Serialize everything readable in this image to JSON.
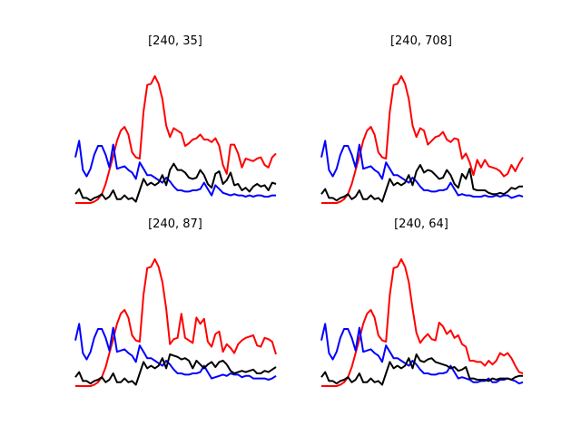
{
  "chart_data": [
    {
      "type": "line",
      "title": "[240, 35]",
      "xlabel": "",
      "ylabel": "",
      "axes_visible": false,
      "grid": false,
      "ylim": [
        0,
        1
      ],
      "series": [
        {
          "color": "#ff0000",
          "values": [
            0.0,
            0.0,
            0.0,
            0.0,
            0.0,
            0.01,
            0.03,
            0.07,
            0.15,
            0.26,
            0.37,
            0.49,
            0.57,
            0.6,
            0.54,
            0.4,
            0.36,
            0.35,
            0.72,
            0.93,
            0.94,
            1.0,
            0.94,
            0.82,
            0.61,
            0.52,
            0.59,
            0.57,
            0.55,
            0.45,
            0.47,
            0.5,
            0.51,
            0.54,
            0.5,
            0.5,
            0.48,
            0.51,
            0.45,
            0.3,
            0.23,
            0.46,
            0.46,
            0.39,
            0.28,
            0.35,
            0.34,
            0.33,
            0.35,
            0.36,
            0.3,
            0.28,
            0.36,
            0.39
          ]
        },
        {
          "color": "#0000ff",
          "values": [
            0.36,
            0.49,
            0.26,
            0.21,
            0.27,
            0.38,
            0.45,
            0.45,
            0.38,
            0.28,
            0.46,
            0.27,
            0.28,
            0.29,
            0.26,
            0.24,
            0.19,
            0.32,
            0.27,
            0.22,
            0.22,
            0.2,
            0.18,
            0.16,
            0.2,
            0.17,
            0.13,
            0.1,
            0.1,
            0.09,
            0.09,
            0.1,
            0.1,
            0.11,
            0.16,
            0.11,
            0.06,
            0.14,
            0.11,
            0.08,
            0.07,
            0.06,
            0.07,
            0.06,
            0.06,
            0.05,
            0.06,
            0.05,
            0.06,
            0.06,
            0.05,
            0.05,
            0.06,
            0.06
          ]
        },
        {
          "color": "#000000",
          "values": [
            0.07,
            0.11,
            0.04,
            0.04,
            0.02,
            0.04,
            0.05,
            0.07,
            0.03,
            0.05,
            0.1,
            0.03,
            0.03,
            0.06,
            0.03,
            0.04,
            0.01,
            0.1,
            0.19,
            0.14,
            0.16,
            0.14,
            0.16,
            0.22,
            0.14,
            0.26,
            0.31,
            0.26,
            0.26,
            0.24,
            0.2,
            0.19,
            0.2,
            0.26,
            0.22,
            0.15,
            0.12,
            0.23,
            0.25,
            0.15,
            0.18,
            0.24,
            0.14,
            0.15,
            0.1,
            0.12,
            0.09,
            0.13,
            0.15,
            0.13,
            0.14,
            0.1,
            0.16,
            0.15
          ]
        }
      ]
    },
    {
      "type": "line",
      "title": "[240, 708]",
      "xlabel": "",
      "ylabel": "",
      "axes_visible": false,
      "grid": false,
      "ylim": [
        0,
        1
      ],
      "series": [
        {
          "color": "#ff0000",
          "values": [
            0.0,
            0.0,
            0.0,
            0.0,
            0.0,
            0.01,
            0.03,
            0.07,
            0.15,
            0.26,
            0.37,
            0.49,
            0.57,
            0.6,
            0.54,
            0.4,
            0.36,
            0.35,
            0.72,
            0.93,
            0.94,
            1.0,
            0.94,
            0.82,
            0.61,
            0.52,
            0.59,
            0.57,
            0.46,
            0.49,
            0.52,
            0.53,
            0.56,
            0.5,
            0.48,
            0.51,
            0.5,
            0.35,
            0.39,
            0.32,
            0.22,
            0.34,
            0.28,
            0.34,
            0.29,
            0.28,
            0.27,
            0.25,
            0.21,
            0.23,
            0.3,
            0.25,
            0.31,
            0.36
          ]
        },
        {
          "color": "#0000ff",
          "values": [
            0.36,
            0.49,
            0.26,
            0.21,
            0.27,
            0.38,
            0.45,
            0.45,
            0.38,
            0.28,
            0.46,
            0.27,
            0.28,
            0.29,
            0.26,
            0.24,
            0.19,
            0.32,
            0.27,
            0.22,
            0.22,
            0.2,
            0.18,
            0.16,
            0.2,
            0.17,
            0.13,
            0.1,
            0.1,
            0.09,
            0.09,
            0.1,
            0.1,
            0.11,
            0.16,
            0.11,
            0.06,
            0.07,
            0.06,
            0.06,
            0.05,
            0.05,
            0.05,
            0.06,
            0.05,
            0.05,
            0.06,
            0.05,
            0.06,
            0.06,
            0.04,
            0.05,
            0.06,
            0.05
          ]
        },
        {
          "color": "#000000",
          "values": [
            0.07,
            0.11,
            0.04,
            0.04,
            0.02,
            0.04,
            0.05,
            0.07,
            0.03,
            0.05,
            0.1,
            0.03,
            0.03,
            0.06,
            0.03,
            0.04,
            0.01,
            0.1,
            0.19,
            0.14,
            0.16,
            0.14,
            0.16,
            0.22,
            0.14,
            0.25,
            0.3,
            0.24,
            0.26,
            0.25,
            0.22,
            0.19,
            0.2,
            0.26,
            0.22,
            0.15,
            0.12,
            0.23,
            0.19,
            0.27,
            0.11,
            0.1,
            0.1,
            0.1,
            0.08,
            0.07,
            0.07,
            0.08,
            0.07,
            0.09,
            0.12,
            0.11,
            0.13,
            0.13
          ]
        }
      ]
    },
    {
      "type": "line",
      "title": "[240, 87]",
      "xlabel": "",
      "ylabel": "",
      "axes_visible": false,
      "grid": false,
      "ylim": [
        0,
        1
      ],
      "series": [
        {
          "color": "#ff0000",
          "values": [
            0.0,
            0.0,
            0.0,
            0.0,
            0.0,
            0.01,
            0.03,
            0.07,
            0.15,
            0.26,
            0.37,
            0.49,
            0.57,
            0.6,
            0.54,
            0.4,
            0.36,
            0.35,
            0.72,
            0.93,
            0.94,
            1.0,
            0.94,
            0.82,
            0.61,
            0.33,
            0.37,
            0.38,
            0.57,
            0.38,
            0.36,
            0.34,
            0.54,
            0.49,
            0.53,
            0.35,
            0.31,
            0.41,
            0.43,
            0.27,
            0.33,
            0.3,
            0.26,
            0.33,
            0.36,
            0.38,
            0.39,
            0.4,
            0.32,
            0.31,
            0.38,
            0.37,
            0.35,
            0.25
          ]
        },
        {
          "color": "#0000ff",
          "values": [
            0.36,
            0.49,
            0.26,
            0.21,
            0.27,
            0.38,
            0.45,
            0.45,
            0.38,
            0.28,
            0.46,
            0.27,
            0.28,
            0.29,
            0.26,
            0.24,
            0.19,
            0.32,
            0.27,
            0.22,
            0.22,
            0.2,
            0.18,
            0.16,
            0.2,
            0.17,
            0.13,
            0.1,
            0.1,
            0.09,
            0.09,
            0.1,
            0.1,
            0.11,
            0.16,
            0.11,
            0.06,
            0.07,
            0.08,
            0.09,
            0.08,
            0.1,
            0.09,
            0.09,
            0.07,
            0.08,
            0.08,
            0.06,
            0.06,
            0.06,
            0.06,
            0.05,
            0.06,
            0.08
          ]
        },
        {
          "color": "#000000",
          "values": [
            0.07,
            0.11,
            0.04,
            0.04,
            0.02,
            0.04,
            0.05,
            0.07,
            0.03,
            0.05,
            0.1,
            0.03,
            0.03,
            0.06,
            0.03,
            0.04,
            0.01,
            0.1,
            0.19,
            0.14,
            0.16,
            0.14,
            0.16,
            0.22,
            0.14,
            0.25,
            0.24,
            0.23,
            0.21,
            0.22,
            0.2,
            0.14,
            0.2,
            0.17,
            0.14,
            0.17,
            0.19,
            0.15,
            0.19,
            0.2,
            0.17,
            0.12,
            0.1,
            0.11,
            0.12,
            0.11,
            0.12,
            0.13,
            0.1,
            0.1,
            0.12,
            0.11,
            0.13,
            0.15
          ]
        }
      ]
    },
    {
      "type": "line",
      "title": "[240, 64]",
      "xlabel": "",
      "ylabel": "",
      "axes_visible": false,
      "grid": false,
      "ylim": [
        0,
        1
      ],
      "series": [
        {
          "color": "#ff0000",
          "values": [
            0.0,
            0.0,
            0.0,
            0.0,
            0.0,
            0.01,
            0.03,
            0.07,
            0.15,
            0.26,
            0.37,
            0.49,
            0.57,
            0.6,
            0.54,
            0.4,
            0.36,
            0.35,
            0.72,
            0.93,
            0.94,
            1.0,
            0.94,
            0.82,
            0.61,
            0.42,
            0.34,
            0.38,
            0.41,
            0.37,
            0.36,
            0.5,
            0.47,
            0.41,
            0.44,
            0.38,
            0.4,
            0.33,
            0.31,
            0.2,
            0.2,
            0.19,
            0.19,
            0.16,
            0.2,
            0.17,
            0.2,
            0.26,
            0.24,
            0.26,
            0.22,
            0.16,
            0.11,
            0.1
          ]
        },
        {
          "color": "#0000ff",
          "values": [
            0.36,
            0.49,
            0.26,
            0.21,
            0.27,
            0.38,
            0.45,
            0.45,
            0.38,
            0.28,
            0.46,
            0.27,
            0.28,
            0.29,
            0.26,
            0.24,
            0.19,
            0.32,
            0.27,
            0.22,
            0.22,
            0.2,
            0.18,
            0.16,
            0.2,
            0.17,
            0.13,
            0.1,
            0.1,
            0.09,
            0.09,
            0.1,
            0.1,
            0.11,
            0.16,
            0.11,
            0.06,
            0.07,
            0.06,
            0.05,
            0.03,
            0.03,
            0.04,
            0.04,
            0.06,
            0.03,
            0.03,
            0.05,
            0.05,
            0.06,
            0.05,
            0.04,
            0.02,
            0.03
          ]
        },
        {
          "color": "#000000",
          "values": [
            0.07,
            0.11,
            0.04,
            0.04,
            0.02,
            0.04,
            0.05,
            0.07,
            0.03,
            0.05,
            0.1,
            0.03,
            0.03,
            0.06,
            0.03,
            0.04,
            0.01,
            0.1,
            0.19,
            0.14,
            0.16,
            0.14,
            0.16,
            0.22,
            0.14,
            0.25,
            0.2,
            0.19,
            0.21,
            0.22,
            0.19,
            0.18,
            0.17,
            0.16,
            0.14,
            0.15,
            0.12,
            0.13,
            0.15,
            0.06,
            0.06,
            0.05,
            0.05,
            0.05,
            0.04,
            0.06,
            0.05,
            0.06,
            0.06,
            0.06,
            0.05,
            0.07,
            0.08,
            0.08
          ]
        }
      ]
    }
  ]
}
